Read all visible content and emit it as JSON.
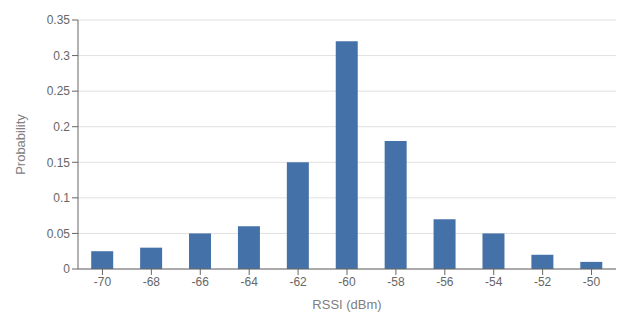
{
  "chart_data": {
    "type": "bar",
    "categories": [
      "-70",
      "-68",
      "-66",
      "-64",
      "-62",
      "-60",
      "-58",
      "-56",
      "-54",
      "-52",
      "-50"
    ],
    "values": [
      0.025,
      0.03,
      0.05,
      0.06,
      0.15,
      0.32,
      0.18,
      0.07,
      0.05,
      0.02,
      0.01
    ],
    "color": "#4472a8",
    "xlabel": "RSSI (dBm)",
    "ylabel": "Probability",
    "ylim": [
      0,
      0.35
    ],
    "yticks": [
      0,
      0.05,
      0.1,
      0.15,
      0.2,
      0.25,
      0.3,
      0.35
    ],
    "grid": true
  }
}
